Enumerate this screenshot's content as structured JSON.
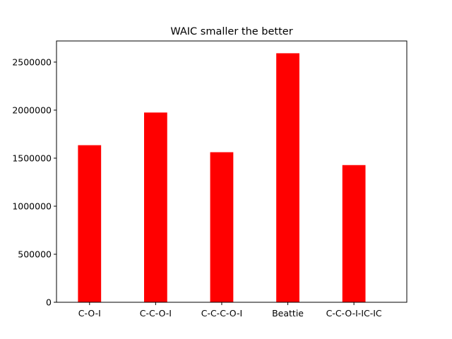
{
  "chart_data": {
    "type": "bar",
    "title": "WAIC smaller the better",
    "xlabel": "",
    "ylabel": "",
    "categories": [
      "C-O-I",
      "C-C-O-I",
      "C-C-C-O-I",
      "Beattie",
      "C-C-O-I-IC-IC"
    ],
    "values": [
      1635000,
      1975000,
      1562000,
      2592000,
      1428000
    ],
    "ylim": [
      0,
      2720000
    ],
    "yticks": [
      0,
      500000,
      1000000,
      1500000,
      2000000,
      2500000
    ],
    "ytick_labels": [
      "0",
      "500000",
      "1000000",
      "1500000",
      "2000000",
      "2500000"
    ],
    "bar_color": "#ff0000",
    "grid": false,
    "legend": "none"
  }
}
